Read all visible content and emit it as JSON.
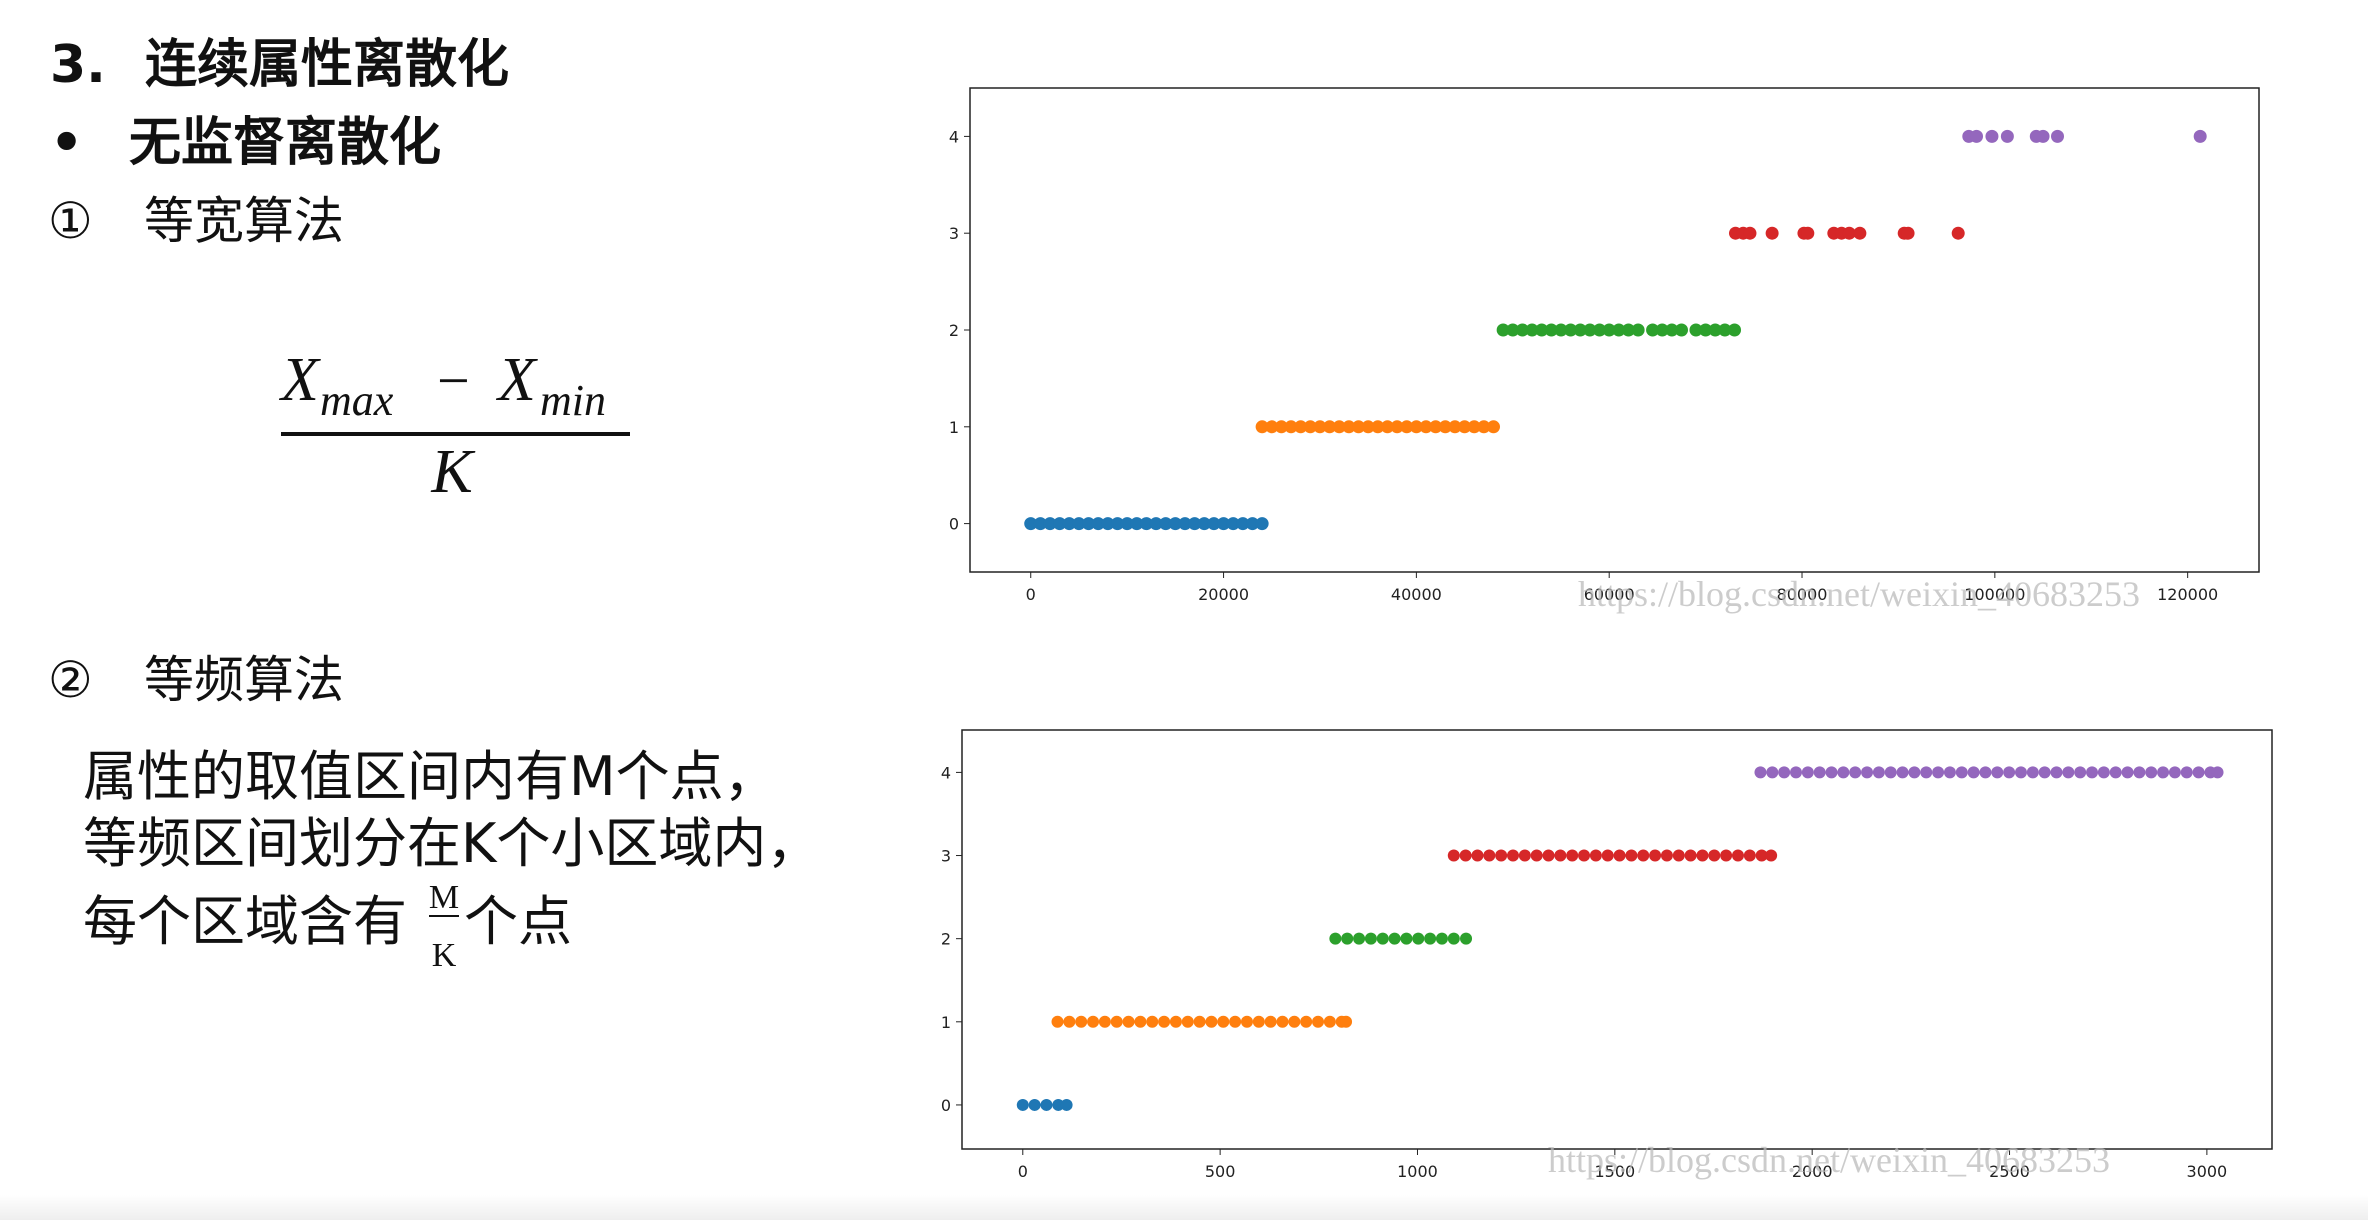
{
  "heading": {
    "number": "3.",
    "title": "连续属性离散化"
  },
  "bullet": {
    "mark": "•",
    "text": "无监督离散化"
  },
  "method1": {
    "mark": "①",
    "title": "等宽算法"
  },
  "formula": {
    "x1": "X",
    "sub1": "max",
    "op": "−",
    "x2": "X",
    "sub2": "min",
    "den": "K"
  },
  "method2": {
    "mark": "②",
    "title": "等频算法"
  },
  "paragraph": {
    "line1": "属性的取值区间内有M个点，",
    "line2": "等频区间划分在K个小区域内，",
    "line3_start": "每个区域含有",
    "frac_num": "M",
    "frac_den": "K",
    "line3_end": "个点"
  },
  "chart_data": [
    {
      "type": "scatter",
      "watermark": "https://blog.csdn.net/weixin_40683253",
      "xlim": [
        -6300,
        127400
      ],
      "ylim": [
        -0.5,
        4.5
      ],
      "xticks": [
        0,
        20000,
        40000,
        60000,
        80000,
        100000,
        120000
      ],
      "yticks": [
        0,
        1,
        2,
        3,
        4
      ],
      "series": [
        {
          "color": "#1f77b4",
          "x": [
            0,
            1000,
            2000,
            3000,
            4000,
            5000,
            6000,
            7000,
            8000,
            9000,
            10000,
            11000,
            12000,
            13000,
            14000,
            15000,
            16000,
            17000,
            18000,
            19000,
            20000,
            21000,
            22000,
            23000,
            24000
          ],
          "values": [
            0,
            0,
            0,
            0,
            0,
            0,
            0,
            0,
            0,
            0,
            0,
            0,
            0,
            0,
            0,
            0,
            0,
            0,
            0,
            0,
            0,
            0,
            0,
            0,
            0
          ]
        },
        {
          "color": "#ff7f0e",
          "x": [
            24000,
            25000,
            26000,
            27000,
            28000,
            29000,
            30000,
            31000,
            32000,
            33000,
            34000,
            35000,
            36000,
            37000,
            38000,
            39000,
            40000,
            41000,
            42000,
            43000,
            44000,
            45000,
            46000,
            47000,
            48000
          ],
          "values": [
            1,
            1,
            1,
            1,
            1,
            1,
            1,
            1,
            1,
            1,
            1,
            1,
            1,
            1,
            1,
            1,
            1,
            1,
            1,
            1,
            1,
            1,
            1,
            1,
            1
          ]
        },
        {
          "color": "#2ca02c",
          "x": [
            49000,
            50000,
            51000,
            52000,
            53000,
            54000,
            55000,
            56000,
            57000,
            58000,
            59000,
            60000,
            61000,
            62000,
            63000,
            64500,
            65500,
            66500,
            67500,
            69000,
            70000,
            71000,
            72000,
            73000
          ],
          "values": [
            2,
            2,
            2,
            2,
            2,
            2,
            2,
            2,
            2,
            2,
            2,
            2,
            2,
            2,
            2,
            2,
            2,
            2,
            2,
            2,
            2,
            2,
            2,
            2
          ]
        },
        {
          "color": "#d62728",
          "x": [
            73100,
            73900,
            74600,
            76900,
            80200,
            80600,
            83300,
            84100,
            84900,
            86000,
            90600,
            91000,
            96200
          ],
          "values": [
            3,
            3,
            3,
            3,
            3,
            3,
            3,
            3,
            3,
            3,
            3,
            3,
            3
          ]
        },
        {
          "color": "#9467bd",
          "x": [
            97300,
            98100,
            99700,
            101300,
            104300,
            105000,
            106500,
            121300
          ],
          "values": [
            4,
            4,
            4,
            4,
            4,
            4,
            4,
            4
          ]
        }
      ]
    },
    {
      "type": "scatter",
      "watermark": "https://blog.csdn.net/weixin_40683253",
      "xlim": [
        -154,
        3165
      ],
      "ylim": [
        -0.53,
        4.51
      ],
      "xticks": [
        0,
        500,
        1000,
        1500,
        2000,
        2500,
        3000
      ],
      "yticks": [
        0,
        1,
        2,
        3,
        4
      ],
      "series": [
        {
          "color": "#1f77b4",
          "x": [
            0,
            30,
            60,
            90,
            111
          ],
          "values": [
            0,
            0,
            0,
            0,
            0
          ]
        },
        {
          "color": "#ff7f0e",
          "x": [
            88,
            118,
            148,
            178,
            208,
            238,
            268,
            298,
            328,
            358,
            388,
            418,
            448,
            478,
            508,
            538,
            568,
            598,
            628,
            658,
            688,
            718,
            748,
            778,
            808,
            819
          ],
          "values": [
            1,
            1,
            1,
            1,
            1,
            1,
            1,
            1,
            1,
            1,
            1,
            1,
            1,
            1,
            1,
            1,
            1,
            1,
            1,
            1,
            1,
            1,
            1,
            1,
            1,
            1
          ]
        },
        {
          "color": "#2ca02c",
          "x": [
            792,
            822,
            852,
            882,
            912,
            942,
            972,
            1002,
            1032,
            1062,
            1092,
            1123
          ],
          "values": [
            2,
            2,
            2,
            2,
            2,
            2,
            2,
            2,
            2,
            2,
            2,
            2
          ]
        },
        {
          "color": "#d62728",
          "x": [
            1092,
            1122,
            1152,
            1182,
            1212,
            1242,
            1272,
            1302,
            1332,
            1362,
            1392,
            1422,
            1452,
            1482,
            1512,
            1542,
            1572,
            1602,
            1632,
            1662,
            1692,
            1722,
            1752,
            1782,
            1812,
            1842,
            1872,
            1896
          ],
          "values": [
            3,
            3,
            3,
            3,
            3,
            3,
            3,
            3,
            3,
            3,
            3,
            3,
            3,
            3,
            3,
            3,
            3,
            3,
            3,
            3,
            3,
            3,
            3,
            3,
            3,
            3,
            3,
            3
          ]
        },
        {
          "color": "#9467bd",
          "x": [
            1869,
            1899,
            1929,
            1959,
            1989,
            2019,
            2049,
            2079,
            2109,
            2139,
            2169,
            2199,
            2229,
            2259,
            2289,
            2319,
            2349,
            2379,
            2409,
            2439,
            2469,
            2499,
            2529,
            2559,
            2589,
            2619,
            2649,
            2679,
            2709,
            2739,
            2769,
            2799,
            2829,
            2859,
            2889,
            2919,
            2949,
            2979,
            3009,
            3027
          ],
          "values": [
            4,
            4,
            4,
            4,
            4,
            4,
            4,
            4,
            4,
            4,
            4,
            4,
            4,
            4,
            4,
            4,
            4,
            4,
            4,
            4,
            4,
            4,
            4,
            4,
            4,
            4,
            4,
            4,
            4,
            4,
            4,
            4,
            4,
            4,
            4,
            4,
            4,
            4,
            4,
            4
          ]
        }
      ]
    }
  ]
}
